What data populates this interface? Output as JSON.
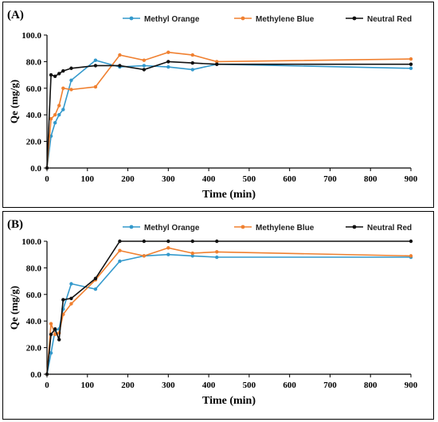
{
  "chart_data": [
    {
      "type": "line",
      "panel_label": "(A)",
      "xlabel": "Time (min)",
      "ylabel": "Qe (mg/g)",
      "xlim": [
        0,
        900
      ],
      "ylim": [
        0,
        100
      ],
      "x_ticks": [
        "0",
        "100",
        "200",
        "300",
        "400",
        "500",
        "600",
        "700",
        "800",
        "900"
      ],
      "y_ticks": [
        "0.0",
        "20.0",
        "40.0",
        "60.0",
        "80.0",
        "100.0"
      ],
      "grid": false,
      "legend_position": "top",
      "series": [
        {
          "name": "Methyl Orange",
          "color": "#3399cc",
          "x": [
            0,
            10,
            20,
            30,
            40,
            60,
            120,
            180,
            240,
            300,
            360,
            420,
            900
          ],
          "y": [
            0,
            24,
            34,
            40,
            44,
            66,
            81,
            76,
            77,
            76,
            74,
            78,
            75
          ]
        },
        {
          "name": "Methylene Blue",
          "color": "#f08030",
          "x": [
            0,
            10,
            20,
            30,
            40,
            60,
            120,
            180,
            240,
            300,
            360,
            420,
            900
          ],
          "y": [
            0,
            37,
            40,
            47,
            60,
            59,
            61,
            85,
            81,
            87,
            85,
            80,
            82
          ]
        },
        {
          "name": "Neutral Red",
          "color": "#111111",
          "x": [
            0,
            10,
            20,
            30,
            40,
            60,
            120,
            180,
            240,
            300,
            360,
            420,
            900
          ],
          "y": [
            0,
            70,
            69,
            71,
            73,
            75,
            77,
            77,
            74,
            80,
            79,
            78,
            78
          ]
        }
      ]
    },
    {
      "type": "line",
      "panel_label": "(B)",
      "xlabel": "Time (min)",
      "ylabel": "Qe (mg/g)",
      "xlim": [
        0,
        900
      ],
      "ylim": [
        0,
        100
      ],
      "x_ticks": [
        "0",
        "100",
        "200",
        "300",
        "400",
        "500",
        "600",
        "700",
        "800",
        "900"
      ],
      "y_ticks": [
        "0.0",
        "20.0",
        "40.0",
        "60.0",
        "80.0",
        "100.0"
      ],
      "grid": false,
      "legend_position": "top",
      "series": [
        {
          "name": "Methyl Orange",
          "color": "#3399cc",
          "x": [
            0,
            10,
            20,
            30,
            40,
            60,
            120,
            180,
            240,
            300,
            360,
            420,
            900
          ],
          "y": [
            0,
            16,
            33,
            34,
            49,
            68,
            64,
            85,
            89,
            90,
            89,
            88,
            88
          ]
        },
        {
          "name": "Methylene Blue",
          "color": "#f08030",
          "x": [
            0,
            10,
            20,
            30,
            40,
            60,
            120,
            180,
            240,
            300,
            360,
            420,
            900
          ],
          "y": [
            0,
            38,
            30,
            31,
            45,
            53,
            71,
            93,
            89,
            95,
            91,
            92,
            89
          ]
        },
        {
          "name": "Neutral Red",
          "color": "#111111",
          "x": [
            0,
            10,
            20,
            30,
            40,
            60,
            120,
            180,
            240,
            300,
            360,
            420,
            900
          ],
          "y": [
            0,
            30,
            34,
            26,
            56,
            57,
            72,
            100,
            100,
            100,
            100,
            100,
            100
          ]
        }
      ]
    }
  ]
}
